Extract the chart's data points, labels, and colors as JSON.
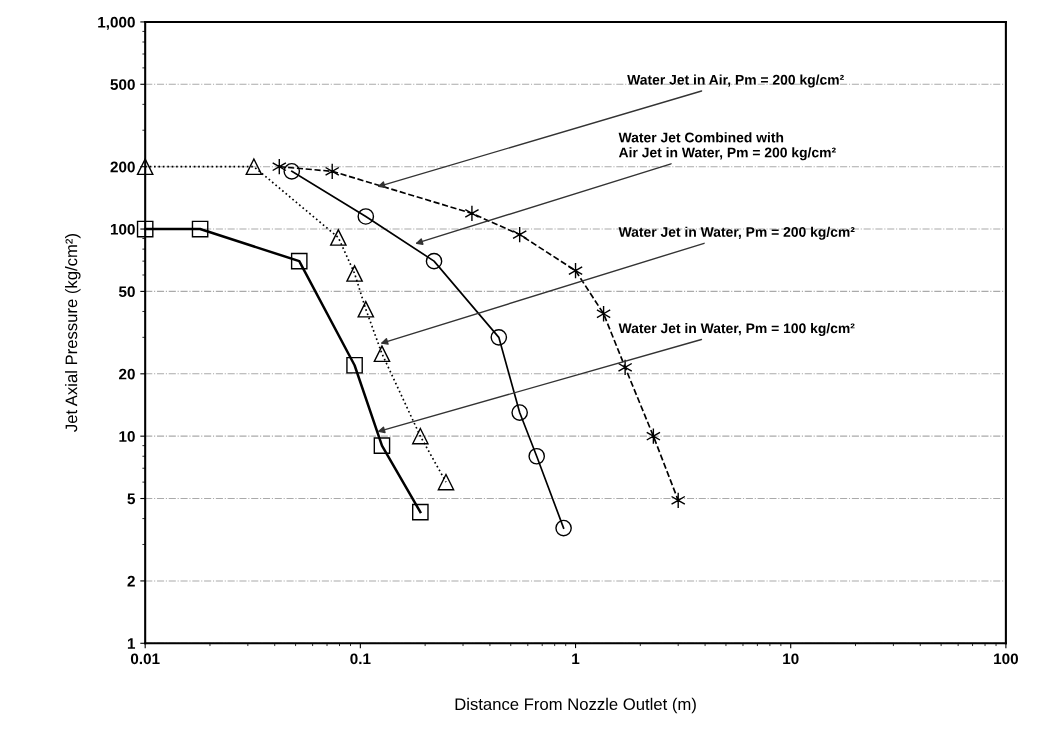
{
  "chart_data": {
    "type": "line",
    "xlabel": "Distance From Nozzle Outlet (m)",
    "ylabel": "Jet Axial Pressure (kg/cm²)",
    "log": "xy",
    "xlim": [
      0.01,
      100
    ],
    "ylim": [
      1,
      1000
    ],
    "xticks": [
      0.01,
      0.1,
      1,
      10,
      100
    ],
    "yticks": [
      1,
      2,
      5,
      10,
      20,
      50,
      100,
      200,
      500,
      {
        "value": 1000,
        "label": "1,000"
      }
    ],
    "grid": "y",
    "series": [
      {
        "marker": "cross",
        "line_style": "dashed",
        "color": "#000000",
        "x": [
          0.042,
          0.074,
          0.33,
          0.55,
          1.0,
          1.35,
          1.7,
          2.3,
          3.0
        ],
        "values": [
          200,
          190,
          119,
          94,
          63,
          39,
          21.5,
          10,
          4.9
        ]
      },
      {
        "marker": "circle",
        "line_style": "solid",
        "color": "#000000",
        "x": [
          0.048,
          0.106,
          0.22,
          0.44,
          0.55,
          0.66,
          0.88
        ],
        "values": [
          190,
          115,
          70,
          30,
          13,
          8,
          3.6
        ]
      },
      {
        "marker": "triangle",
        "line_style": "dotted",
        "color": "#000000",
        "x": [
          0.01,
          0.032,
          0.079,
          0.094,
          0.106,
          0.126,
          0.19,
          0.25
        ],
        "values": [
          200,
          200,
          91,
          61,
          41,
          25,
          10,
          6
        ]
      },
      {
        "marker": "square",
        "line_style": "solid",
        "color": "#000000",
        "x": [
          0.01,
          0.018,
          0.052,
          0.094,
          0.126,
          0.19
        ],
        "values": [
          100,
          100,
          70,
          22,
          9,
          4.3
        ]
      }
    ],
    "annotations": [
      {
        "text": "Water Jet in Air, Pm = 200 kg/cm²",
        "x": 0.12,
        "y": 160
      },
      {
        "text": "Water Jet Combined with\nAir Jet in Water, Pm = 200 kg/cm²",
        "x": 0.18,
        "y": 85
      },
      {
        "text": "Water Jet in Water, Pm = 200 kg/cm²",
        "x": 0.124,
        "y": 28
      },
      {
        "text": "Water Jet in Water, Pm = 100 kg/cm²",
        "x": 0.12,
        "y": 10.5
      }
    ]
  }
}
